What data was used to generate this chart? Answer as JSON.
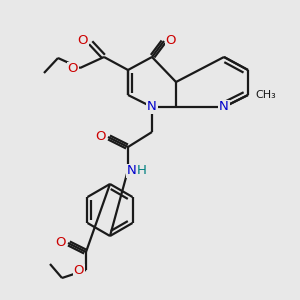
{
  "bg_color": "#e8e8e8",
  "atom_colors": {
    "N": "#0000cc",
    "O": "#cc0000",
    "H": "#008080"
  },
  "bond_color": "#1a1a1a",
  "figsize": [
    3.0,
    3.0
  ],
  "dpi": 100
}
